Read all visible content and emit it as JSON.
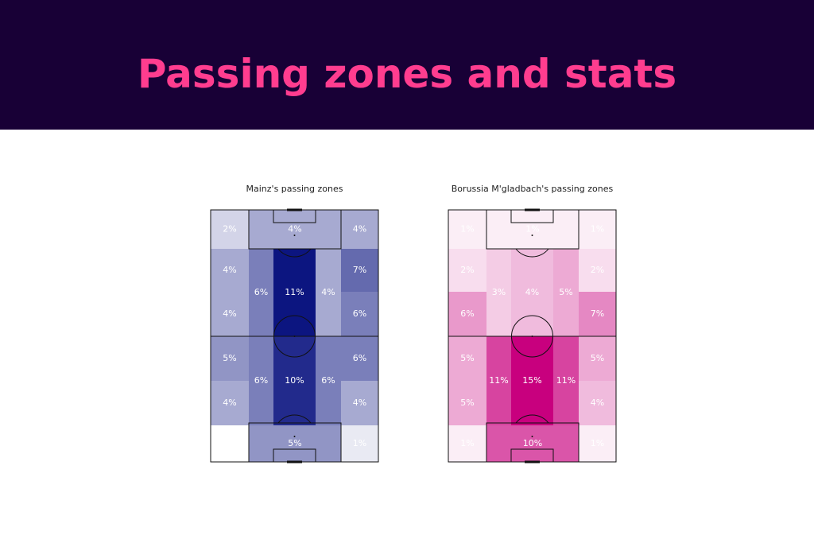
{
  "header": {
    "title": "Passing zones and stats"
  },
  "chart_data": [
    {
      "type": "pitch-zones",
      "title": "Mainz's passing zones",
      "cmap": [
        "#ffffff",
        "#0c1580"
      ],
      "values": [
        2,
        4,
        4,
        4,
        4,
        6,
        11,
        4,
        7,
        6,
        5,
        4,
        6,
        10,
        6,
        6,
        4,
        0,
        5,
        1
      ],
      "value_labels": [
        "2%",
        "4%",
        "4%",
        "4%",
        "4%",
        "6%",
        "11%",
        "4%",
        "7%",
        "6%",
        "5%",
        "4%",
        "6%",
        "10%",
        "6%",
        "6%",
        "4%",
        "0%",
        "5%",
        "1%"
      ]
    },
    {
      "type": "pitch-zones",
      "title": "Borussia M'gladbach's passing zones",
      "cmap": [
        "#ffffff",
        "#c8007e"
      ],
      "values": [
        1,
        1,
        1,
        2,
        6,
        3,
        4,
        5,
        2,
        7,
        5,
        5,
        11,
        15,
        11,
        5,
        4,
        1,
        10,
        1
      ],
      "value_labels": [
        "1%",
        "1%",
        "1%",
        "2%",
        "6%",
        "3%",
        "4%",
        "5%",
        "2%",
        "7%",
        "5%",
        "5%",
        "11%",
        "15%",
        "11%",
        "5%",
        "4%",
        "1%",
        "10%",
        "1%"
      ]
    }
  ]
}
